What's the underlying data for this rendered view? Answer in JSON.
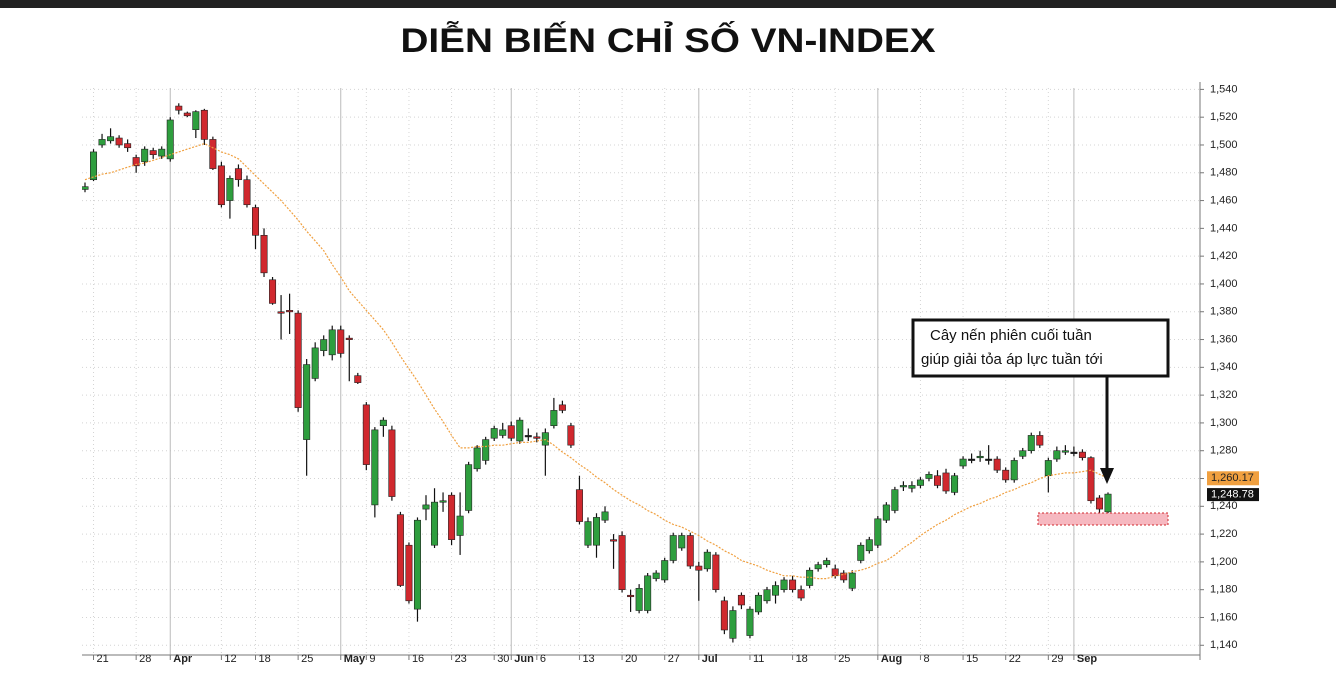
{
  "chart_data": {
    "type": "candlestick",
    "title": "DIỄN BIẾN CHỈ SỐ VN-INDEX",
    "categories": [
      null,
      "21",
      null,
      null,
      null,
      null,
      "28",
      null,
      null,
      null,
      "Apr",
      null,
      null,
      null,
      null,
      null,
      "12",
      null,
      null,
      null,
      "18",
      null,
      null,
      null,
      null,
      "25",
      null,
      null,
      null,
      null,
      "May",
      null,
      null,
      "9",
      null,
      null,
      null,
      null,
      "16",
      null,
      null,
      null,
      null,
      "23",
      null,
      null,
      null,
      null,
      "30",
      null,
      "Jun",
      null,
      null,
      "6",
      null,
      null,
      null,
      null,
      "13",
      null,
      null,
      null,
      null,
      "20",
      null,
      null,
      null,
      null,
      "27",
      null,
      null,
      null,
      "Jul",
      null,
      null,
      null,
      null,
      null,
      "11",
      null,
      null,
      null,
      null,
      "18",
      null,
      null,
      null,
      null,
      "25",
      null,
      null,
      null,
      null,
      "Aug",
      null,
      null,
      null,
      null,
      "8",
      null,
      null,
      null,
      null,
      "15",
      null,
      null,
      null,
      null,
      "22",
      null,
      null,
      null,
      null,
      "29",
      null,
      null,
      "Sep",
      null,
      null,
      null,
      null
    ],
    "open": [
      1468,
      1475,
      1500,
      1503,
      1505,
      1501,
      1491,
      1488,
      1496,
      1492,
      1490,
      1528,
      1523,
      1511,
      1525,
      1504,
      1485,
      1460,
      1483,
      1475,
      1455,
      1435,
      1403,
      1380,
      1381,
      1379,
      1288,
      1332,
      1352,
      1349,
      1367,
      1361,
      1334,
      1313,
      1241,
      1298,
      1295,
      1234,
      1212,
      1166,
      1238,
      1212,
      1243,
      1248,
      1219,
      1237,
      1267,
      1273,
      1289,
      1291,
      1298,
      1287,
      1291,
      1290,
      1284,
      1298,
      1313,
      1298,
      1252,
      1212,
      1212,
      1230,
      1216,
      1219,
      1176,
      1165,
      1165,
      1188,
      1187,
      1201,
      1210,
      1219,
      1197,
      1195,
      1205,
      1172,
      1145,
      1176,
      1147,
      1164,
      1172,
      1176,
      1180,
      1187,
      1180,
      1183,
      1195,
      1198,
      1195,
      1192,
      1181,
      1201,
      1208,
      1212,
      1230,
      1237,
      1254,
      1253,
      1255,
      1260,
      1262,
      1264,
      1250,
      1269,
      1274,
      1275,
      1274,
      1274,
      1266,
      1259,
      1276,
      1280,
      1291,
      1262,
      1274,
      1279,
      1279,
      1279,
      1275,
      1246,
      1236
    ],
    "high": [
      1473,
      1497,
      1508,
      1512,
      1507,
      1504,
      1493,
      1499,
      1498,
      1499,
      1520,
      1530,
      1524,
      1525,
      1526,
      1506,
      1488,
      1478,
      1486,
      1478,
      1457,
      1440,
      1405,
      1392,
      1393,
      1381,
      1346,
      1358,
      1363,
      1370,
      1370,
      1363,
      1336,
      1315,
      1297,
      1304,
      1298,
      1236,
      1214,
      1232,
      1248,
      1253,
      1250,
      1250,
      1250,
      1272,
      1284,
      1290,
      1298,
      1300,
      1301,
      1304,
      1296,
      1293,
      1296,
      1318,
      1316,
      1300,
      1262,
      1232,
      1235,
      1240,
      1220,
      1222,
      1180,
      1184,
      1192,
      1194,
      1203,
      1221,
      1221,
      1221,
      1200,
      1209,
      1207,
      1175,
      1168,
      1178,
      1168,
      1178,
      1182,
      1186,
      1189,
      1190,
      1183,
      1196,
      1200,
      1203,
      1198,
      1194,
      1194,
      1214,
      1218,
      1233,
      1243,
      1254,
      1258,
      1258,
      1261,
      1265,
      1266,
      1267,
      1264,
      1276,
      1278,
      1280,
      1284,
      1276,
      1268,
      1275,
      1282,
      1293,
      1294,
      1275,
      1283,
      1284,
      1283,
      1281,
      1276,
      1248,
      1250
    ],
    "low": [
      1466,
      1474,
      1498,
      1501,
      1498,
      1495,
      1480,
      1485,
      1490,
      1490,
      1488,
      1522,
      1520,
      1505,
      1500,
      1482,
      1455,
      1447,
      1470,
      1455,
      1425,
      1405,
      1385,
      1360,
      1364,
      1308,
      1262,
      1330,
      1348,
      1345,
      1347,
      1330,
      1328,
      1266,
      1232,
      1290,
      1244,
      1182,
      1170,
      1157,
      1230,
      1210,
      1236,
      1212,
      1205,
      1235,
      1265,
      1270,
      1287,
      1289,
      1287,
      1285,
      1287,
      1286,
      1262,
      1296,
      1307,
      1282,
      1227,
      1210,
      1203,
      1228,
      1195,
      1178,
      1164,
      1163,
      1163,
      1186,
      1185,
      1199,
      1208,
      1195,
      1172,
      1193,
      1178,
      1148,
      1142,
      1166,
      1145,
      1162,
      1170,
      1170,
      1178,
      1178,
      1172,
      1181,
      1193,
      1196,
      1188,
      1185,
      1179,
      1199,
      1206,
      1210,
      1228,
      1235,
      1251,
      1250,
      1253,
      1258,
      1253,
      1249,
      1248,
      1267,
      1271,
      1272,
      1270,
      1264,
      1257,
      1257,
      1274,
      1278,
      1282,
      1250,
      1272,
      1277,
      1276,
      1273,
      1242,
      1235,
      1228
    ],
    "close": [
      1470,
      1495,
      1504,
      1506,
      1500,
      1498,
      1485,
      1497,
      1493,
      1497,
      1518,
      1525,
      1521,
      1524,
      1504,
      1483,
      1457,
      1476,
      1475,
      1457,
      1435,
      1408,
      1386,
      1379,
      1380,
      1311,
      1342,
      1354,
      1360,
      1367,
      1350,
      1360,
      1329,
      1270,
      1295,
      1302,
      1247,
      1183,
      1172,
      1230,
      1241,
      1243,
      1244,
      1216,
      1233,
      1270,
      1282,
      1288,
      1296,
      1295,
      1289,
      1302,
      1291,
      1289,
      1293,
      1309,
      1309,
      1284,
      1229,
      1229,
      1232,
      1236,
      1215,
      1180,
      1175,
      1181,
      1190,
      1192,
      1201,
      1219,
      1219,
      1197,
      1194,
      1207,
      1180,
      1151,
      1165,
      1169,
      1166,
      1176,
      1180,
      1183,
      1187,
      1180,
      1174,
      1194,
      1198,
      1201,
      1190,
      1187,
      1192,
      1212,
      1216,
      1231,
      1241,
      1252,
      1255,
      1255,
      1259,
      1263,
      1255,
      1251,
      1262,
      1274,
      1274,
      1276,
      1274,
      1266,
      1259,
      1273,
      1280,
      1291,
      1284,
      1273,
      1280,
      1280,
      1279,
      1275,
      1244,
      1238,
      1248.78
    ],
    "ma": [
      1475,
      1477,
      1479,
      1480,
      1482,
      1484,
      1486,
      1487,
      1489,
      1491,
      1493,
      1495,
      1497,
      1499,
      1501,
      1498,
      1495,
      1493,
      1490,
      1484,
      1478,
      1472,
      1466,
      1460,
      1453,
      1446,
      1438,
      1431,
      1424,
      1414,
      1405,
      1395,
      1388,
      1381,
      1374,
      1367,
      1358,
      1348,
      1339,
      1330,
      1320,
      1310,
      1301,
      1291,
      1282,
      1282,
      1283,
      1283,
      1284,
      1284,
      1285,
      1286,
      1286,
      1287,
      1288,
      1284,
      1279,
      1275,
      1270,
      1266,
      1261,
      1257,
      1252,
      1248,
      1244,
      1241,
      1237,
      1234,
      1230,
      1227,
      1225,
      1222,
      1219,
      1215,
      1212,
      1208,
      1205,
      1201,
      1199,
      1197,
      1194,
      1192,
      1190,
      1190,
      1189,
      1189,
      1188,
      1188,
      1190,
      1191,
      1193,
      1194,
      1196,
      1199,
      1201,
      1205,
      1210,
      1214,
      1219,
      1223,
      1227,
      1230,
      1234,
      1237,
      1240,
      1242,
      1245,
      1247,
      1250,
      1252,
      1255,
      1257,
      1260,
      1262,
      1263,
      1264,
      1264,
      1265,
      1266,
      1263,
      1260.17
    ],
    "ma_color": "#f0a040",
    "up_color": "#2e9e3e",
    "down_color": "#d0282e",
    "ma_label": "1,260.17",
    "close_label": "1,248.78",
    "ylim": [
      1133,
      1541
    ],
    "yticks": [
      {
        "value": 1140,
        "label": "1,140"
      },
      {
        "value": 1160,
        "label": "1,160"
      },
      {
        "value": 1180,
        "label": "1,180"
      },
      {
        "value": 1200,
        "label": "1,200"
      },
      {
        "value": 1220,
        "label": "1,220"
      },
      {
        "value": 1240,
        "label": "1,240"
      },
      {
        "value": 1260,
        "label": "1,260"
      },
      {
        "value": 1280,
        "label": "1,280"
      },
      {
        "value": 1300,
        "label": "1,300"
      },
      {
        "value": 1320,
        "label": "1,320"
      },
      {
        "value": 1340,
        "label": "1,340"
      },
      {
        "value": 1360,
        "label": "1,360"
      },
      {
        "value": 1380,
        "label": "1,380"
      },
      {
        "value": 1400,
        "label": "1,400"
      },
      {
        "value": 1420,
        "label": "1,420"
      },
      {
        "value": 1440,
        "label": "1,440"
      },
      {
        "value": 1460,
        "label": "1,460"
      },
      {
        "value": 1480,
        "label": "1,480"
      },
      {
        "value": 1500,
        "label": "1,500"
      },
      {
        "value": 1520,
        "label": "1,520"
      },
      {
        "value": 1540,
        "label": "1,540"
      }
    ],
    "grid": true,
    "annotation": [
      "Cây nến phiên cuối tuần",
      "giúp giải tỏa áp lực tuần tới"
    ]
  }
}
